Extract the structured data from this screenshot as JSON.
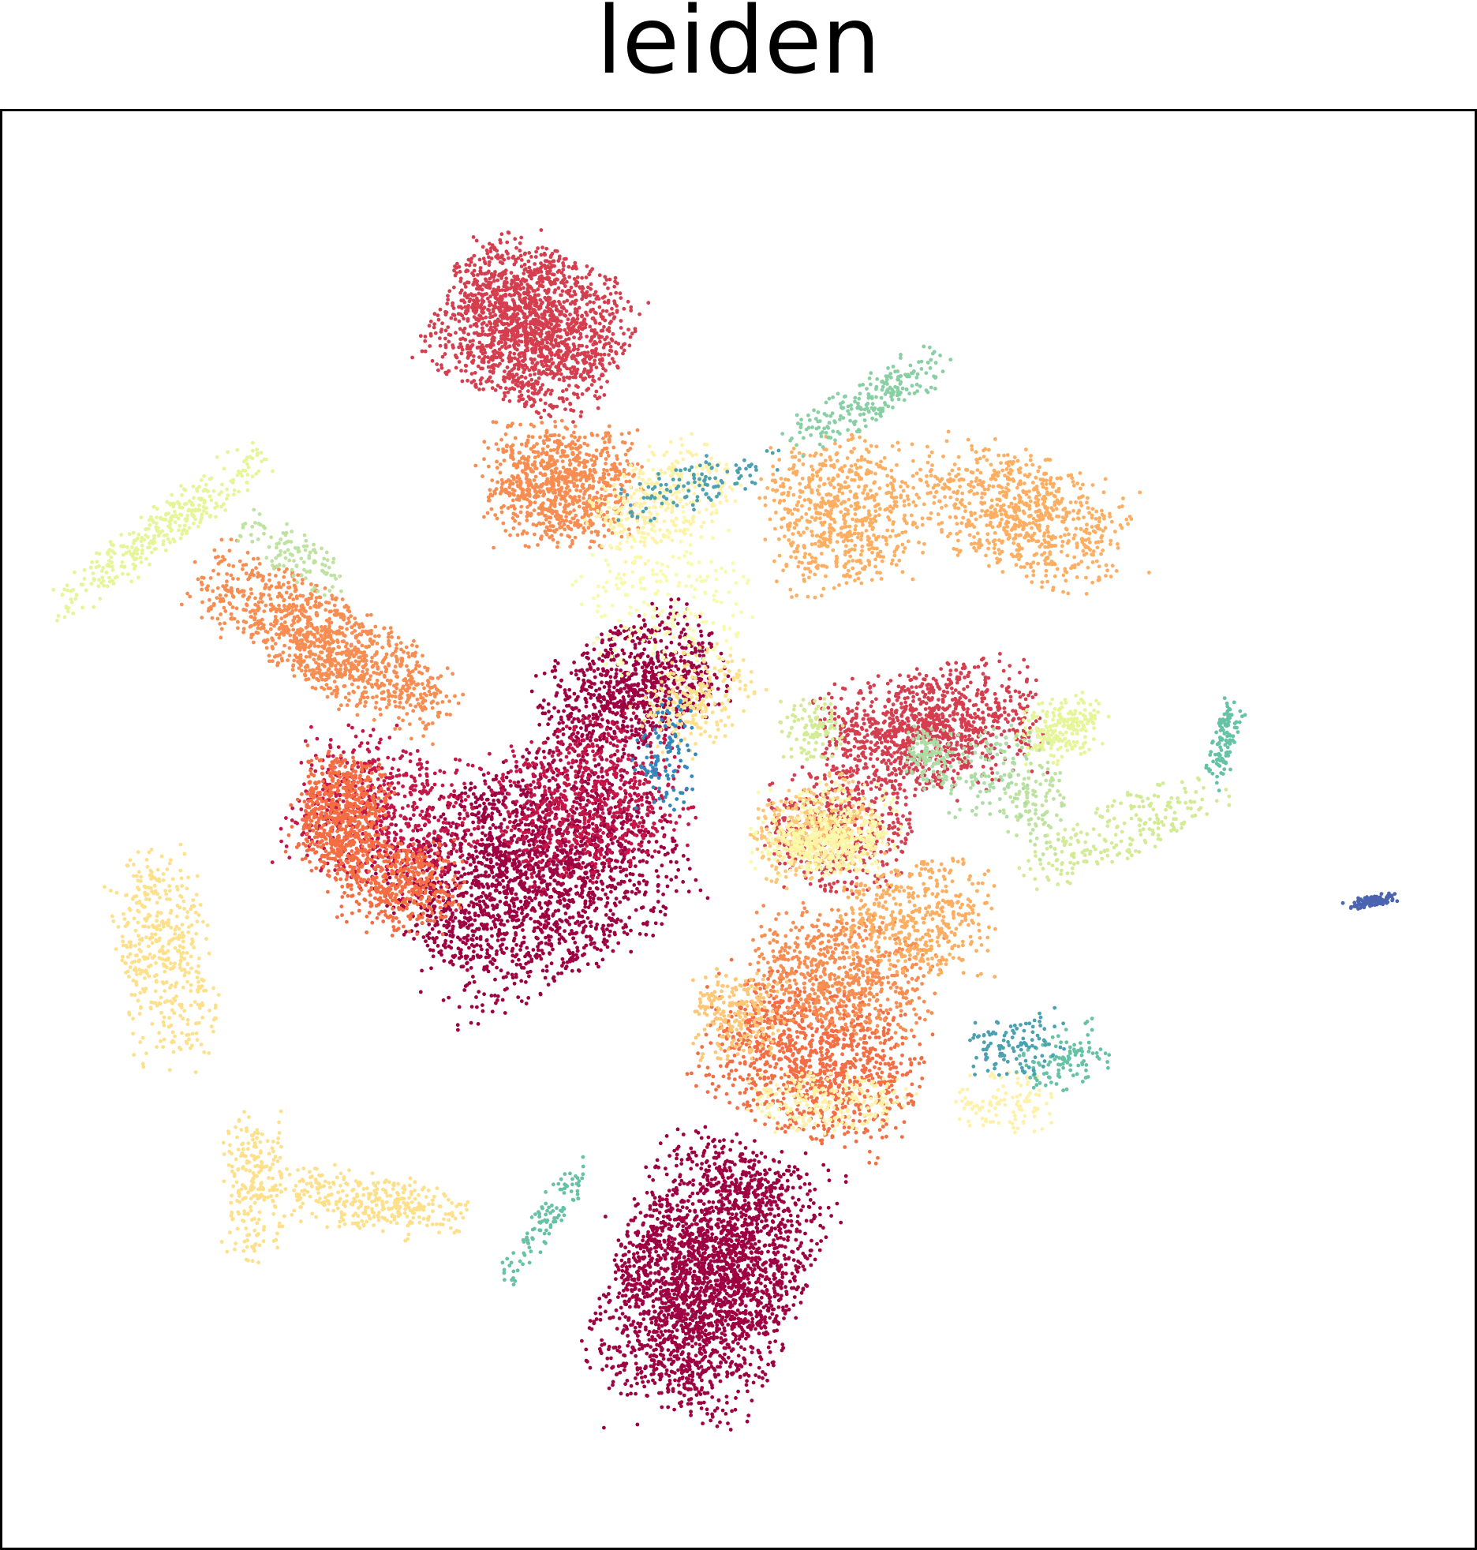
{
  "chart_data": {
    "type": "scatter",
    "title": "leiden",
    "xlabel": "",
    "ylabel": "",
    "grid": false,
    "legend": "none",
    "xlim": [
      0,
      100
    ],
    "ylim": [
      0,
      100
    ],
    "series": [
      {
        "color": "#9e0142",
        "clusters": [
          [
            48,
            19,
            6,
            9,
            25,
            -20,
            6
          ],
          [
            36,
            47,
            9,
            7,
            20,
            30,
            10
          ],
          [
            43,
            60,
            4,
            6,
            8,
            -60,
            4
          ]
        ]
      },
      {
        "color": "#c51648",
        "clusters": [
          [
            26,
            51,
            6,
            5,
            6,
            -15,
            3
          ],
          [
            40,
            52,
            6,
            5,
            6,
            20,
            3
          ]
        ]
      },
      {
        "color": "#d53e4f",
        "clusters": [
          [
            36,
            85,
            6,
            5,
            16,
            -25,
            8
          ],
          [
            63,
            57,
            7,
            4,
            10,
            10,
            5
          ],
          [
            57,
            50,
            5,
            4,
            4,
            0,
            2
          ]
        ]
      },
      {
        "color": "#f46d43",
        "clusters": [
          [
            23,
            51,
            3,
            4,
            6,
            -10,
            3
          ],
          [
            55,
            34,
            7,
            5,
            10,
            -20,
            5
          ],
          [
            27,
            46,
            4,
            3,
            4,
            0,
            2
          ]
        ]
      },
      {
        "color": "#f88d52",
        "clusters": [
          [
            38,
            74,
            5,
            4,
            8,
            0,
            4
          ],
          [
            22,
            63,
            9,
            3,
            10,
            -30,
            5
          ],
          [
            57,
            40,
            6,
            4,
            6,
            -10,
            3
          ]
        ]
      },
      {
        "color": "#fdae61",
        "clusters": [
          [
            57,
            72,
            5,
            5,
            6,
            10,
            3
          ],
          [
            69,
            72,
            7,
            4,
            7,
            -20,
            3
          ],
          [
            62,
            44,
            5,
            4,
            4,
            0,
            2
          ]
        ]
      },
      {
        "color": "#fdc777",
        "clusters": [
          [
            55,
            50,
            4,
            3,
            3,
            20,
            2
          ],
          [
            50,
            37,
            3,
            3,
            2,
            0,
            1
          ]
        ]
      },
      {
        "color": "#fee08b",
        "clusters": [
          [
            11,
            41,
            3,
            7,
            4,
            10,
            1
          ],
          [
            25,
            24,
            6,
            2,
            3,
            -10,
            1
          ],
          [
            17,
            25,
            2,
            5,
            2,
            0,
            1
          ],
          [
            47,
            59,
            3,
            4,
            2,
            -40,
            1
          ]
        ]
      },
      {
        "color": "#fff2a8",
        "clusters": [
          [
            45,
            73,
            5,
            3,
            3,
            30,
            1
          ],
          [
            56,
            49,
            4,
            2,
            3,
            0,
            1
          ],
          [
            56,
            31,
            5,
            2,
            2,
            0,
            1
          ],
          [
            68,
            31,
            3,
            2,
            1,
            0,
            1
          ]
        ]
      },
      {
        "color": "#f7fbaa",
        "clusters": [
          [
            45,
            66,
            6,
            5,
            2,
            20,
            1
          ],
          [
            56,
            50,
            5,
            3,
            2,
            0,
            1
          ]
        ]
      },
      {
        "color": "#e6f598",
        "clusters": [
          [
            11,
            71,
            9,
            1.5,
            3,
            38,
            1
          ],
          [
            72,
            57,
            3,
            2,
            2,
            20,
            1
          ]
        ]
      },
      {
        "color": "#d2eb94",
        "clusters": [
          [
            55,
            57,
            2,
            2,
            1,
            0,
            1
          ],
          [
            76,
            50,
            7,
            2,
            2,
            25,
            1
          ]
        ]
      },
      {
        "color": "#bee3a0",
        "clusters": [
          [
            20,
            69,
            1.5,
            4,
            1,
            60,
            1
          ],
          [
            70,
            52,
            2,
            4,
            1,
            0,
            1
          ]
        ]
      },
      {
        "color": "#abdda4",
        "clusters": [
          [
            63,
            55,
            1.5,
            2,
            1,
            0,
            1
          ],
          [
            67,
            54,
            3,
            3,
            1,
            0,
            1
          ]
        ]
      },
      {
        "color": "#88d0a4",
        "clusters": [
          [
            59,
            80,
            6,
            1.5,
            2,
            30,
            1
          ]
        ]
      },
      {
        "color": "#66c2a5",
        "clusters": [
          [
            37,
            23,
            5,
            1,
            1,
            55,
            1
          ],
          [
            72,
            34,
            3,
            2,
            1,
            20,
            1
          ],
          [
            83,
            56,
            3,
            0.8,
            1,
            75,
            1
          ]
        ]
      },
      {
        "color": "#4ba0b1",
        "clusters": [
          [
            47,
            74,
            6,
            1.5,
            1,
            20,
            1
          ],
          [
            69,
            35,
            3,
            2,
            1,
            10,
            1
          ]
        ]
      },
      {
        "color": "#3288bd",
        "clusters": [
          [
            45,
            55,
            2,
            4,
            1,
            0,
            1
          ]
        ]
      },
      {
        "color": "#4b64b0",
        "clusters": [
          [
            93,
            45,
            1.6,
            0.4,
            1,
            10,
            1
          ]
        ]
      }
    ]
  }
}
